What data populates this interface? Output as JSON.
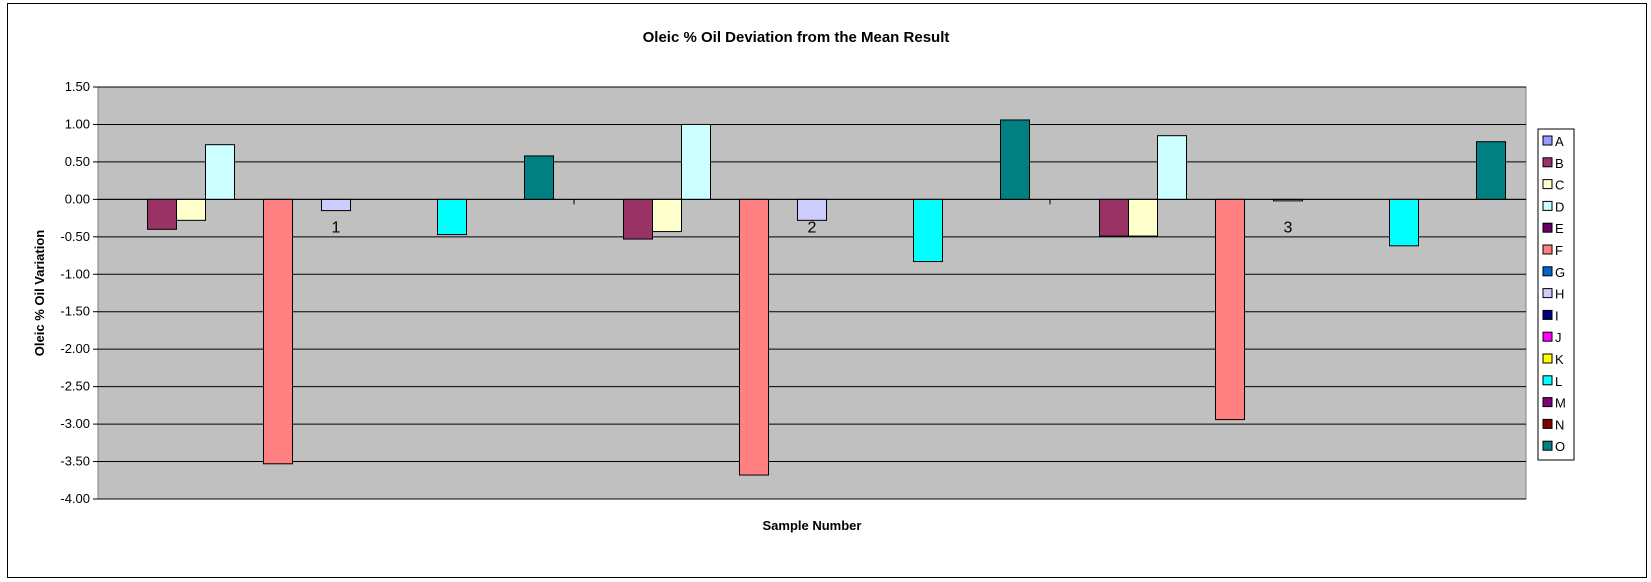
{
  "chart_data": {
    "type": "bar",
    "title": "Oleic % Oil Deviation from the Mean Result",
    "xlabel": "Sample Number",
    "ylabel": "Oleic % Oil Variation",
    "ylim": [
      -4.0,
      1.5
    ],
    "yticks": [
      "1.50",
      "1.00",
      "0.50",
      "0.00",
      "-0.50",
      "-1.00",
      "-1.50",
      "-2.00",
      "-2.50",
      "-3.00",
      "-3.50",
      "-4.00"
    ],
    "grid": true,
    "legend_position": "right",
    "categories": [
      "1",
      "2",
      "3"
    ],
    "series": [
      {
        "name": "A",
        "color": "#9999ff",
        "values": [
          null,
          null,
          null
        ]
      },
      {
        "name": "B",
        "color": "#993366",
        "values": [
          -0.4,
          -0.53,
          -0.49
        ]
      },
      {
        "name": "C",
        "color": "#ffffcc",
        "values": [
          -0.28,
          -0.43,
          -0.49
        ]
      },
      {
        "name": "D",
        "color": "#ccffff",
        "values": [
          0.73,
          1.0,
          0.85
        ]
      },
      {
        "name": "E",
        "color": "#660066",
        "values": [
          null,
          null,
          null
        ]
      },
      {
        "name": "F",
        "color": "#ff8080",
        "values": [
          -3.53,
          -3.68,
          -2.94
        ]
      },
      {
        "name": "G",
        "color": "#0066cc",
        "values": [
          null,
          null,
          null
        ]
      },
      {
        "name": "H",
        "color": "#ccccff",
        "values": [
          -0.15,
          -0.28,
          -0.02
        ]
      },
      {
        "name": "I",
        "color": "#000080",
        "values": [
          null,
          null,
          null
        ]
      },
      {
        "name": "J",
        "color": "#ff00ff",
        "values": [
          null,
          null,
          null
        ]
      },
      {
        "name": "K",
        "color": "#ffff00",
        "values": [
          null,
          null,
          null
        ]
      },
      {
        "name": "L",
        "color": "#00ffff",
        "values": [
          -0.47,
          -0.83,
          -0.62
        ]
      },
      {
        "name": "M",
        "color": "#800080",
        "values": [
          null,
          null,
          null
        ]
      },
      {
        "name": "N",
        "color": "#800000",
        "values": [
          null,
          null,
          null
        ]
      },
      {
        "name": "O",
        "color": "#008080",
        "values": [
          0.58,
          1.06,
          0.77
        ]
      }
    ]
  },
  "colors": {
    "plot_background": "#c0c0c0"
  }
}
